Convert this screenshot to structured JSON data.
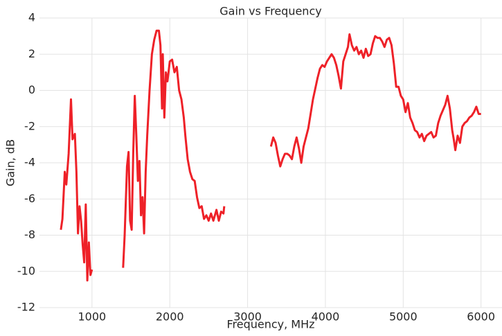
{
  "chart_data": {
    "type": "line",
    "title": "Gain vs Frequency",
    "xlabel": "Frequency, MHz",
    "ylabel": "Gain, dB",
    "xlim": [
      325,
      6270
    ],
    "ylim": [
      -12,
      4
    ],
    "xticks": [
      1000,
      2000,
      3000,
      4000,
      5000,
      6000
    ],
    "yticks": [
      -12,
      -10,
      -8,
      -6,
      -4,
      -2,
      0,
      2,
      4
    ],
    "grid": true,
    "x": [
      600,
      620,
      650,
      670,
      700,
      720,
      730,
      750,
      780,
      800,
      820,
      840,
      860,
      880,
      900,
      920,
      940,
      960,
      980,
      1000,
      1200,
      1400,
      1420,
      1450,
      1470,
      1490,
      1510,
      1530,
      1550,
      1570,
      1590,
      1610,
      1630,
      1650,
      1670,
      1690,
      1710,
      1740,
      1770,
      1800,
      1830,
      1860,
      1880,
      1900,
      1910,
      1930,
      1950,
      1970,
      2000,
      2030,
      2060,
      2090,
      2120,
      2150,
      2180,
      2200,
      2230,
      2260,
      2290,
      2320,
      2350,
      2380,
      2410,
      2440,
      2470,
      2500,
      2530,
      2560,
      2600,
      2630,
      2660,
      2690,
      2700,
      3000,
      3300,
      3330,
      3360,
      3390,
      3420,
      3450,
      3480,
      3510,
      3540,
      3570,
      3600,
      3630,
      3660,
      3690,
      3720,
      3750,
      3780,
      3810,
      3840,
      3870,
      3900,
      3930,
      3960,
      3990,
      4020,
      4050,
      4080,
      4110,
      4140,
      4170,
      4200,
      4230,
      4260,
      4290,
      4310,
      4340,
      4370,
      4400,
      4430,
      4460,
      4490,
      4520,
      4550,
      4580,
      4610,
      4640,
      4670,
      4700,
      4730,
      4760,
      4790,
      4820,
      4850,
      4880,
      4910,
      4940,
      4970,
      5000,
      5030,
      5060,
      5090,
      5120,
      5150,
      5180,
      5210,
      5240,
      5270,
      5300,
      5330,
      5360,
      5390,
      5420,
      5450,
      5480,
      5510,
      5540,
      5570,
      5600,
      5630,
      5650,
      5670,
      5700,
      5730,
      5760,
      5790,
      5820,
      5850,
      5880,
      5910,
      5940,
      5970,
      6000
    ],
    "series": [
      {
        "name": "Gain",
        "color": "#ee2128",
        "values": [
          -7.7,
          -7.1,
          -4.5,
          -5.2,
          -3.5,
          -1.5,
          -0.5,
          -2.7,
          -2.4,
          -4.5,
          -7.9,
          -6.4,
          -7.2,
          -8.5,
          -9.5,
          -6.3,
          -10.5,
          -8.4,
          -10.2,
          -9.9,
          null,
          -9.8,
          -8,
          -4.2,
          -3.4,
          -7.2,
          -7.7,
          -3.5,
          -0.3,
          -2.5,
          -5,
          -3.9,
          -6.9,
          -5.9,
          -7.9,
          -4.5,
          -2.5,
          0,
          2,
          2.8,
          3.3,
          3.3,
          2.5,
          -1,
          2,
          -1.5,
          1,
          0.5,
          1.6,
          1.7,
          1,
          1.3,
          0,
          -0.5,
          -1.5,
          -2.5,
          -3.8,
          -4.5,
          -4.9,
          -5,
          -5.9,
          -6.5,
          -6.4,
          -7.1,
          -6.9,
          -7.2,
          -6.8,
          -7.2,
          -6.6,
          -7.2,
          -6.7,
          -6.8,
          -6.4,
          null,
          -3.1,
          -2.6,
          -2.9,
          -3.6,
          -4.2,
          -3.8,
          -3.5,
          -3.5,
          -3.6,
          -3.8,
          -3.1,
          -2.6,
          -3.2,
          -4,
          -3.1,
          -2.6,
          -2.1,
          -1.3,
          -0.5,
          0.1,
          0.7,
          1.2,
          1.4,
          1.3,
          1.6,
          1.8,
          2,
          1.8,
          1.4,
          0.8,
          0.1,
          1.6,
          2,
          2.4,
          3.1,
          2.5,
          2.2,
          2.4,
          2,
          2.2,
          1.8,
          2.3,
          1.9,
          2,
          2.6,
          3,
          2.9,
          2.9,
          2.7,
          2.4,
          2.8,
          2.9,
          2.5,
          1.5,
          0.2,
          0.2,
          -0.3,
          -0.5,
          -1.2,
          -0.7,
          -1.5,
          -1.8,
          -2.2,
          -2.3,
          -2.6,
          -2.4,
          -2.8,
          -2.5,
          -2.4,
          -2.3,
          -2.6,
          -2.5,
          -1.8,
          -1.4,
          -1.1,
          -0.8,
          -0.3,
          -1,
          -2.2,
          -2.7,
          -3.3,
          -2.5,
          -2.9,
          -2,
          -1.8,
          -1.7,
          -1.5,
          -1.4,
          -1.2,
          -0.9,
          -1.3,
          -1.3
        ]
      }
    ]
  }
}
